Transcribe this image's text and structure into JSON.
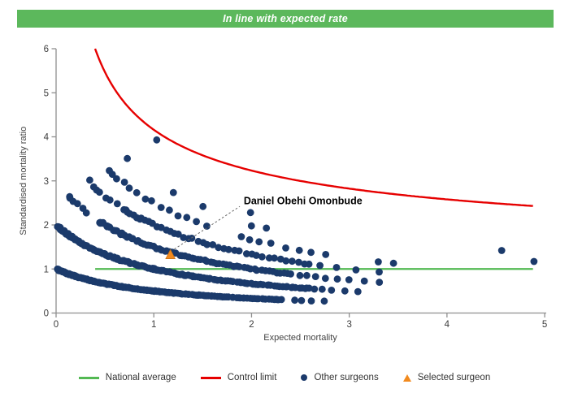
{
  "header": {
    "title": "In line with expected rate",
    "bg_color": "#5cb85c",
    "text_color": "#ffffff"
  },
  "chart_data": {
    "type": "scatter",
    "title": "",
    "xlabel": "Expected mortality",
    "ylabel": "Standardised mortality ratio",
    "xlim": [
      0,
      5
    ],
    "ylim": [
      0,
      6
    ],
    "x_ticks": [
      0,
      1,
      2,
      3,
      4,
      5
    ],
    "y_ticks": [
      0,
      1,
      2,
      3,
      4,
      5,
      6
    ],
    "grid": false,
    "axis_color": "#8f8f8f",
    "tick_label_color": "#3c3c3c",
    "axis_title_color": "#444444",
    "national_average": {
      "label": "National average",
      "y": 1,
      "x_start": 0.4,
      "x_end": 4.88,
      "color": "#53b953"
    },
    "control_limit": {
      "label": "Control limit",
      "formula": "y = base + k / sqrt(x)",
      "base": 1,
      "k": 3.16,
      "x_start": 0.3994,
      "x_end": 4.88,
      "color": "#e60000"
    },
    "other_surgeons": {
      "label": "Other surgeons",
      "color": "#1b3a6b",
      "marker_radius": 4.4,
      "band_formula": "y = deaths / (1 + x)",
      "bands": [
        {
          "deaths": 1,
          "segments": [
            [
              0.02,
              1.0,
              90
            ],
            [
              1.0,
              2.3,
              70
            ],
            [
              2.45,
              2.75,
              4
            ]
          ]
        },
        {
          "deaths": 2,
          "segments": [
            [
              0.02,
              1.0,
              80
            ],
            [
              1.0,
              2.6,
              75
            ],
            [
              2.65,
              3.1,
              5
            ]
          ]
        },
        {
          "deaths": 3,
          "segments": [
            [
              0.13,
              0.32,
              6
            ],
            [
              0.45,
              2.4,
              70
            ],
            [
              2.5,
              3.3,
              8
            ]
          ]
        },
        {
          "deaths": 4,
          "segments": [
            [
              0.35,
              0.62,
              7
            ],
            [
              0.7,
              2.55,
              40
            ],
            [
              2.6,
              3.3,
              5
            ]
          ]
        },
        {
          "deaths": 5,
          "segments": [
            [
              0.55,
              1.55,
              14
            ],
            [
              1.9,
              2.5,
              6
            ],
            [
              2.6,
              2.75,
              2
            ],
            [
              3.3,
              3.45,
              2
            ]
          ]
        },
        {
          "deaths": 6,
          "segments": [
            [
              0.72,
              0.74,
              1
            ],
            [
              1.2,
              1.5,
              2
            ],
            [
              2.0,
              2.15,
              2
            ]
          ]
        }
      ],
      "outliers": [
        [
          1.03,
          3.93
        ],
        [
          1.99,
          2.28
        ],
        [
          4.56,
          1.42
        ],
        [
          4.89,
          1.17
        ]
      ]
    },
    "selected_surgeon": {
      "label": "Selected surgeon",
      "name": "Daniel Obehi Omonbude",
      "x": 1.17,
      "y": 1.33,
      "color": "#f28a1e",
      "edge_color": "#c8741a",
      "name_anchor": {
        "x": 1.92,
        "y": 2.47
      },
      "leader": [
        [
          1.21,
          1.45
        ],
        [
          1.88,
          2.42
        ]
      ],
      "leader_color": "#666666"
    }
  },
  "legend": {
    "items": [
      {
        "type": "line",
        "color": "#53b953",
        "label": "National average"
      },
      {
        "type": "line",
        "color": "#e60000",
        "label": "Control limit"
      },
      {
        "type": "dot",
        "color": "#1b3a6b",
        "label": "Other surgeons"
      },
      {
        "type": "triangle",
        "color": "#f28a1e",
        "label": "Selected surgeon"
      }
    ]
  }
}
